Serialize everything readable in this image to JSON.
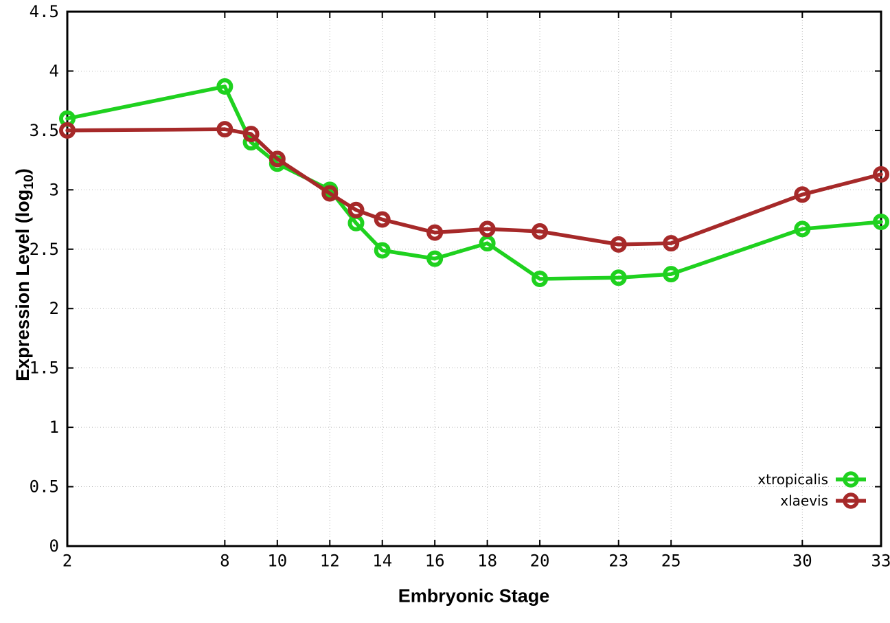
{
  "chart_data": {
    "type": "line",
    "title": "",
    "xlabel": "Embryonic Stage",
    "ylabel_prefix": "Expression Level (log",
    "ylabel_sub": "10",
    "ylabel_suffix": ")",
    "grid": true,
    "legend_position": "bottom-right",
    "xlim": [
      2,
      33
    ],
    "ylim": [
      0,
      4.5
    ],
    "x_ticks": [
      2,
      8,
      10,
      12,
      14,
      16,
      18,
      20,
      23,
      25,
      30,
      33
    ],
    "x_tick_labels": [
      "2",
      "8",
      "10",
      "12",
      "14",
      "16",
      "18",
      "20",
      "23",
      "25",
      "30",
      "33"
    ],
    "y_ticks": [
      0,
      0.5,
      1,
      1.5,
      2,
      2.5,
      3,
      3.5,
      4,
      4.5
    ],
    "y_tick_labels": [
      "0",
      "0.5",
      "1",
      "1.5",
      "2",
      "2.5",
      "3",
      "3.5",
      "4",
      "4.5"
    ],
    "x": [
      2,
      8,
      9,
      10,
      12,
      13,
      14,
      16,
      18,
      20,
      23,
      25,
      30,
      33
    ],
    "series": [
      {
        "name": "xtropicalis",
        "color": "#1fd11f",
        "marker": "open-circle",
        "values": [
          3.6,
          3.87,
          3.4,
          3.22,
          3.0,
          2.72,
          2.49,
          2.42,
          2.55,
          2.25,
          2.26,
          2.29,
          2.67,
          2.73
        ]
      },
      {
        "name": "xlaevis",
        "color": "#a62929",
        "marker": "open-circle",
        "values": [
          3.5,
          3.51,
          3.47,
          3.26,
          2.97,
          2.83,
          2.75,
          2.64,
          2.67,
          2.65,
          2.54,
          2.55,
          2.96,
          3.13
        ]
      }
    ],
    "colors": {
      "grid": "#b4b4b4",
      "border": "#000000",
      "background": "#ffffff"
    }
  }
}
